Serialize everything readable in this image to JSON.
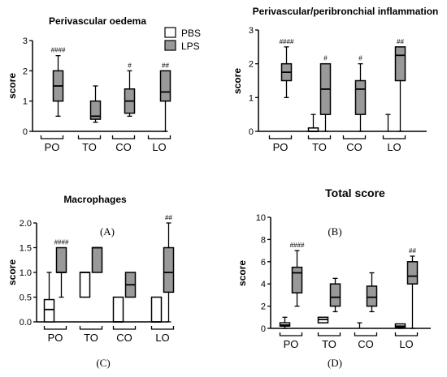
{
  "legend": {
    "items": [
      {
        "name": "PBS",
        "color": "#ffffff"
      },
      {
        "name": "LPS",
        "color": "#999999"
      }
    ]
  },
  "chart_data": [
    {
      "type": "box",
      "panel": "(A)",
      "title": "Perivascular oedema",
      "ylabel": "score",
      "ylim": [
        0,
        3
      ],
      "yticks": [
        "0",
        "1",
        "2",
        "3"
      ],
      "categories": [
        "PO",
        "TO",
        "CO",
        "LO"
      ],
      "series": [
        {
          "name": "PBS",
          "color": "#ffffff",
          "boxes": [
            {
              "min": 0,
              "q1": 0,
              "median": 0,
              "q3": 0,
              "max": 0
            },
            {
              "min": 0,
              "q1": 0,
              "median": 0,
              "q3": 0,
              "max": 0
            },
            {
              "min": 0,
              "q1": 0,
              "median": 0,
              "q3": 0,
              "max": 0
            },
            {
              "min": 0,
              "q1": 0,
              "median": 0,
              "q3": 0,
              "max": 0
            }
          ]
        },
        {
          "name": "LPS",
          "color": "#999999",
          "boxes": [
            {
              "min": 0.5,
              "q1": 1.0,
              "median": 1.5,
              "q3": 2.0,
              "max": 2.5
            },
            {
              "min": 0.3,
              "q1": 0.4,
              "median": 0.5,
              "q3": 1.0,
              "max": 1.5
            },
            {
              "min": 0.5,
              "q1": 0.6,
              "median": 1.0,
              "q3": 1.4,
              "max": 2.0
            },
            {
              "min": 0.0,
              "q1": 1.0,
              "median": 1.3,
              "q3": 2.0,
              "max": 2.0
            }
          ]
        }
      ],
      "annotations": [
        "####",
        "",
        "#",
        "##"
      ]
    },
    {
      "type": "box",
      "panel": "(B)",
      "title": "Perivascular/peribronchial inflammation",
      "ylabel": "score",
      "ylim": [
        0,
        3
      ],
      "yticks": [
        "0",
        "1",
        "2",
        "3"
      ],
      "categories": [
        "PO",
        "TO",
        "CO",
        "LO"
      ],
      "series": [
        {
          "name": "PBS",
          "color": "#ffffff",
          "boxes": [
            {
              "min": 0,
              "q1": 0,
              "median": 0,
              "q3": 0,
              "max": 0
            },
            {
              "min": 0,
              "q1": 0,
              "median": 0,
              "q3": 0.1,
              "max": 0.5
            },
            {
              "min": 0,
              "q1": 0,
              "median": 0,
              "q3": 0,
              "max": 0
            },
            {
              "min": 0,
              "q1": 0,
              "median": 0,
              "q3": 0,
              "max": 0.5
            }
          ]
        },
        {
          "name": "LPS",
          "color": "#999999",
          "boxes": [
            {
              "min": 1.0,
              "q1": 1.5,
              "median": 1.75,
              "q3": 2.0,
              "max": 2.5
            },
            {
              "min": 0.0,
              "q1": 0.5,
              "median": 1.25,
              "q3": 2.0,
              "max": 2.0
            },
            {
              "min": 0.0,
              "q1": 0.5,
              "median": 1.25,
              "q3": 1.5,
              "max": 2.0
            },
            {
              "min": 0.0,
              "q1": 1.5,
              "median": 2.25,
              "q3": 2.5,
              "max": 2.5
            }
          ]
        }
      ],
      "annotations": [
        "####",
        "#",
        "#",
        "##"
      ]
    },
    {
      "type": "box",
      "panel": "(C)",
      "title": "Macrophages",
      "ylabel": "score",
      "ylim": [
        0,
        2
      ],
      "yticks": [
        "0.0",
        "0.5",
        "1.0",
        "1.5",
        "2.0"
      ],
      "categories": [
        "PO",
        "TO",
        "CO",
        "LO"
      ],
      "series": [
        {
          "name": "PBS",
          "color": "#ffffff",
          "boxes": [
            {
              "min": 0,
              "q1": 0,
              "median": 0.25,
              "q3": 0.45,
              "max": 1.0
            },
            {
              "min": 0.5,
              "q1": 0.5,
              "median": 1.0,
              "q3": 1.0,
              "max": 1.0
            },
            {
              "min": 0,
              "q1": 0,
              "median": 0,
              "q3": 0.5,
              "max": 0.5
            },
            {
              "min": 0,
              "q1": 0,
              "median": 0,
              "q3": 0.5,
              "max": 0.5
            }
          ]
        },
        {
          "name": "LPS",
          "color": "#999999",
          "boxes": [
            {
              "min": 0.5,
              "q1": 1.0,
              "median": 1.0,
              "q3": 1.5,
              "max": 1.5
            },
            {
              "min": 1.0,
              "q1": 1.0,
              "median": 1.5,
              "q3": 1.5,
              "max": 1.5
            },
            {
              "min": 0.5,
              "q1": 0.5,
              "median": 0.75,
              "q3": 1.0,
              "max": 1.0
            },
            {
              "min": 0.0,
              "q1": 0.6,
              "median": 1.0,
              "q3": 1.5,
              "max": 2.0
            }
          ]
        }
      ],
      "annotations": [
        "####",
        "",
        "",
        "##"
      ]
    },
    {
      "type": "box",
      "panel": "(D)",
      "title": "Total score",
      "ylabel": "score",
      "ylim": [
        0,
        10
      ],
      "yticks": [
        "0",
        "2",
        "4",
        "6",
        "8",
        "10"
      ],
      "categories": [
        "PO",
        "TO",
        "CO",
        "LO"
      ],
      "series": [
        {
          "name": "PBS",
          "color": "#ffffff",
          "boxes": [
            {
              "min": 0,
              "q1": 0.2,
              "median": 0.3,
              "q3": 0.5,
              "max": 1.0
            },
            {
              "min": 0.5,
              "q1": 0.5,
              "median": 0.8,
              "q3": 1.0,
              "max": 1.0
            },
            {
              "min": 0,
              "q1": 0,
              "median": 0,
              "q3": 0,
              "max": 0.5
            },
            {
              "min": 0,
              "q1": 0.1,
              "median": 0.2,
              "q3": 0.4,
              "max": 0.4
            }
          ]
        },
        {
          "name": "LPS",
          "color": "#999999",
          "boxes": [
            {
              "min": 2.0,
              "q1": 3.2,
              "median": 5.0,
              "q3": 5.5,
              "max": 7.0
            },
            {
              "min": 1.5,
              "q1": 2.0,
              "median": 2.8,
              "q3": 4.0,
              "max": 4.5
            },
            {
              "min": 1.5,
              "q1": 2.0,
              "median": 2.8,
              "q3": 3.8,
              "max": 5.0
            },
            {
              "min": 0.0,
              "q1": 4.0,
              "median": 4.7,
              "q3": 6.0,
              "max": 6.5
            }
          ]
        }
      ],
      "annotations": [
        "####",
        "",
        "",
        "##"
      ]
    }
  ]
}
